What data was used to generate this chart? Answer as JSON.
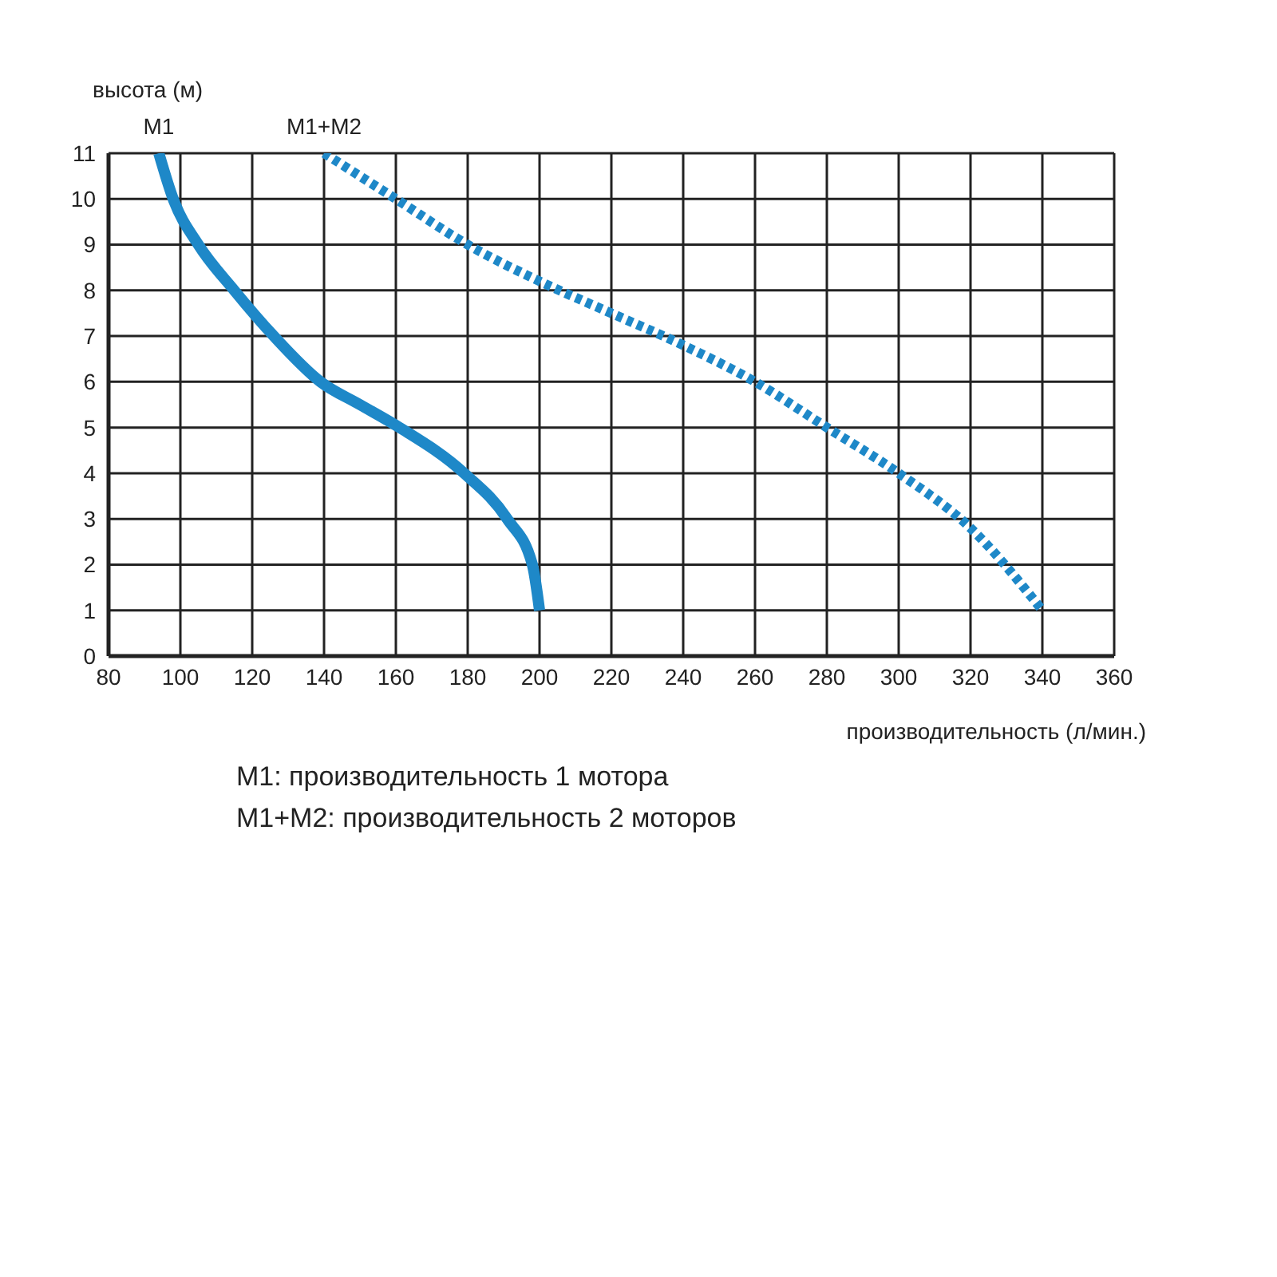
{
  "chart_data": {
    "type": "line",
    "xlabel": "производительность (л/мин.)",
    "ylabel": "высота (м)",
    "xlim": [
      80,
      360
    ],
    "xticks": [
      80,
      100,
      120,
      140,
      160,
      180,
      200,
      220,
      240,
      260,
      280,
      300,
      320,
      340,
      360
    ],
    "ylim": [
      0,
      11
    ],
    "yticks": [
      0,
      1,
      2,
      3,
      4,
      5,
      6,
      7,
      8,
      9,
      10,
      11
    ],
    "grid": true,
    "marker": "none",
    "series": [
      {
        "name": "M1",
        "color": "#1e88c8",
        "line_style": "solid",
        "x": [
          94,
          98,
          105,
          115,
          126,
          139,
          150,
          161,
          179,
          191,
          198,
          200
        ],
        "values": [
          11,
          10,
          9,
          8,
          7,
          6,
          5.5,
          5,
          4,
          3,
          2,
          1
        ]
      },
      {
        "name": "M1+M2",
        "color": "#1e88c8",
        "line_style": "dotted",
        "x": [
          140,
          160,
          180,
          200,
          220,
          240,
          260,
          280,
          300,
          320,
          340
        ],
        "values": [
          11,
          10,
          9,
          8.2,
          7.5,
          6.8,
          6,
          5,
          4,
          2.8,
          1
        ]
      }
    ],
    "annotations": [
      "M1: производительность 1 мотора",
      "M1+M2: производительность 2 моторов"
    ]
  }
}
